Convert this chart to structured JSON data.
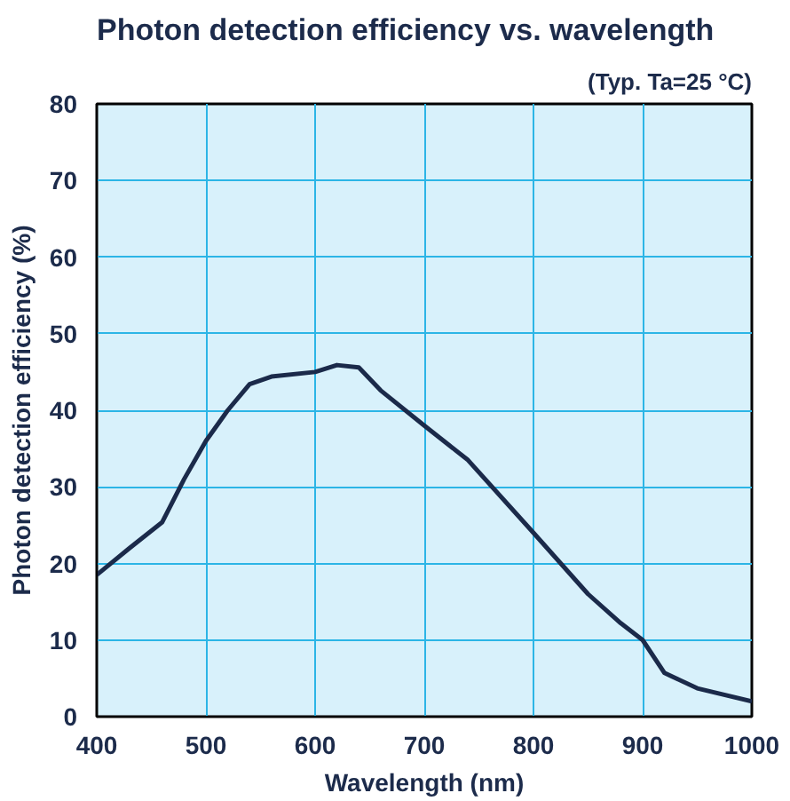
{
  "chart_data": {
    "type": "line",
    "title": "Photon detection efficiency vs. wavelength",
    "annotations": [
      "(Typ. Ta=25 °C)"
    ],
    "xlabel": "Wavelength (nm)",
    "ylabel": "Photon detection efficiency (%)",
    "x": [
      400,
      430,
      460,
      480,
      500,
      520,
      540,
      560,
      600,
      620,
      640,
      660,
      700,
      740,
      800,
      850,
      880,
      900,
      920,
      950,
      1000
    ],
    "series": [
      {
        "color": "#1b2a4a",
        "values": [
          18.5,
          22,
          25.4,
          31,
          36,
          40,
          43.4,
          44.4,
          45,
          45.9,
          45.6,
          42.6,
          38,
          33.5,
          24,
          16,
          12.2,
          10,
          5.7,
          3.7,
          2
        ]
      }
    ],
    "xlim": [
      400,
      1000
    ],
    "xticks": [
      400,
      500,
      600,
      700,
      800,
      900,
      1000
    ],
    "ylim": [
      0,
      80
    ],
    "yticks": [
      0,
      10,
      20,
      30,
      40,
      50,
      60,
      70,
      80
    ],
    "grid": true,
    "marker": "none",
    "line_style": "solid"
  }
}
